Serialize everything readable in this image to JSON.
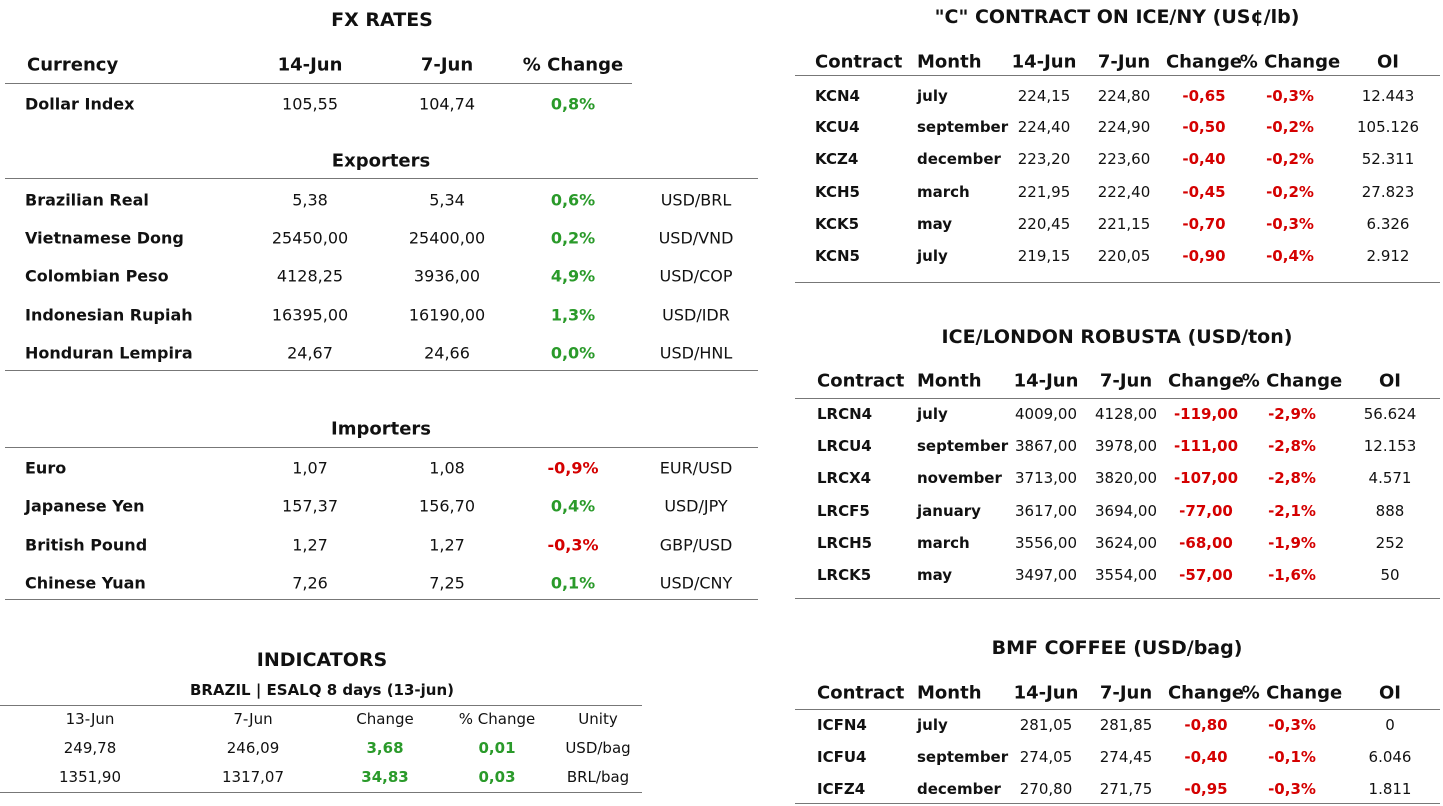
{
  "fx": {
    "title": "FX RATES",
    "header": [
      "Currency",
      "14-Jun",
      "7-Jun",
      "% Change"
    ],
    "rows": [
      [
        "Dollar Index",
        "105,55",
        "104,74",
        "0,8%"
      ]
    ],
    "exporters": {
      "title": "Exporters",
      "rows": [
        [
          "Brazilian Real",
          "5,38",
          "5,34",
          "0,6%",
          "USD/BRL"
        ],
        [
          "Vietnamese Dong",
          "25450,00",
          "25400,00",
          "0,2%",
          "USD/VND"
        ],
        [
          "Colombian Peso",
          "4128,25",
          "3936,00",
          "4,9%",
          "USD/COP"
        ],
        [
          "Indonesian Rupiah",
          "16395,00",
          "16190,00",
          "1,3%",
          "USD/IDR"
        ],
        [
          "Honduran Lempira",
          "24,67",
          "24,66",
          "0,0%",
          "USD/HNL"
        ]
      ]
    },
    "importers": {
      "title": "Importers",
      "rows": [
        [
          "Euro",
          "1,07",
          "1,08",
          "-0,9%",
          "EUR/USD"
        ],
        [
          "Japanese Yen",
          "157,37",
          "156,70",
          "0,4%",
          "USD/JPY"
        ],
        [
          "British Pound",
          "1,27",
          "1,27",
          "-0,3%",
          "GBP/USD"
        ],
        [
          "Chinese Yuan",
          "7,26",
          "7,25",
          "0,1%",
          "USD/CNY"
        ]
      ]
    }
  },
  "indicators": {
    "title": "INDICATORS",
    "subtitle": "BRAZIL | ESALQ 8 days (13-jun)",
    "header": [
      "13-Jun",
      "7-Jun",
      "Change",
      "% Change",
      "Unity"
    ],
    "rows": [
      [
        "249,78",
        "246,09",
        "3,68",
        "0,01",
        "USD/bag"
      ],
      [
        "1351,90",
        "1317,07",
        "34,83",
        "0,03",
        "BRL/bag"
      ]
    ]
  },
  "ny": {
    "title": "\"C\" CONTRACT ON ICE/NY (US¢/lb)",
    "header": [
      "Contract",
      "Month",
      "14-Jun",
      "7-Jun",
      "Change",
      "% Change",
      "OI"
    ],
    "rows": [
      [
        "KCN4",
        "july",
        "224,15",
        "224,80",
        "-0,65",
        "-0,3%",
        "12.443"
      ],
      [
        "KCU4",
        "september",
        "224,40",
        "224,90",
        "-0,50",
        "-0,2%",
        "105.126"
      ],
      [
        "KCZ4",
        "december",
        "223,20",
        "223,60",
        "-0,40",
        "-0,2%",
        "52.311"
      ],
      [
        "KCH5",
        "march",
        "221,95",
        "222,40",
        "-0,45",
        "-0,2%",
        "27.823"
      ],
      [
        "KCK5",
        "may",
        "220,45",
        "221,15",
        "-0,70",
        "-0,3%",
        "6.326"
      ],
      [
        "KCN5",
        "july",
        "219,15",
        "220,05",
        "-0,90",
        "-0,4%",
        "2.912"
      ]
    ]
  },
  "london": {
    "title": "ICE/LONDON ROBUSTA (USD/ton)",
    "header": [
      "Contract",
      "Month",
      "14-Jun",
      "7-Jun",
      "Change",
      "% Change",
      "OI"
    ],
    "rows": [
      [
        "LRCN4",
        "july",
        "4009,00",
        "4128,00",
        "-119,00",
        "-2,9%",
        "56.624"
      ],
      [
        "LRCU4",
        "september",
        "3867,00",
        "3978,00",
        "-111,00",
        "-2,8%",
        "12.153"
      ],
      [
        "LRCX4",
        "november",
        "3713,00",
        "3820,00",
        "-107,00",
        "-2,8%",
        "4.571"
      ],
      [
        "LRCF5",
        "january",
        "3617,00",
        "3694,00",
        "-77,00",
        "-2,1%",
        "888"
      ],
      [
        "LRCH5",
        "march",
        "3556,00",
        "3624,00",
        "-68,00",
        "-1,9%",
        "252"
      ],
      [
        "LRCK5",
        "may",
        "3497,00",
        "3554,00",
        "-57,00",
        "-1,6%",
        "50"
      ]
    ]
  },
  "bmf": {
    "title": "BMF COFFEE (USD/bag)",
    "header": [
      "Contract",
      "Month",
      "14-Jun",
      "7-Jun",
      "Change",
      "% Change",
      "OI"
    ],
    "rows": [
      [
        "ICFN4",
        "july",
        "281,05",
        "281,85",
        "-0,80",
        "-0,3%",
        "0"
      ],
      [
        "ICFU4",
        "september",
        "274,05",
        "274,45",
        "-0,40",
        "-0,1%",
        "6.046"
      ],
      [
        "ICFZ4",
        "december",
        "270,80",
        "271,75",
        "-0,95",
        "-0,3%",
        "1.811"
      ]
    ]
  }
}
